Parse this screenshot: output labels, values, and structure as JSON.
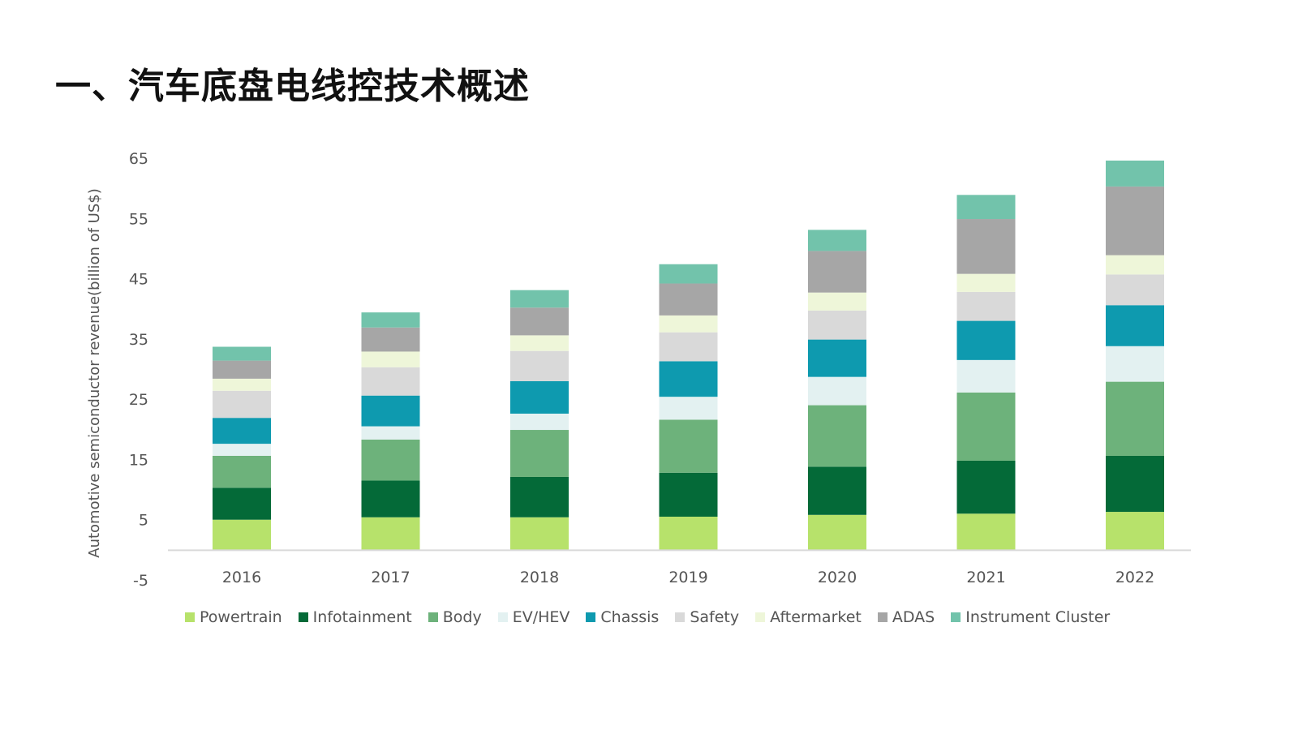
{
  "page": {
    "title": "一、汽车底盘电线控技术概述"
  },
  "chart_data": {
    "type": "bar",
    "stacked": true,
    "categories": [
      "2016",
      "2017",
      "2018",
      "2019",
      "2020",
      "2021",
      "2022"
    ],
    "ylabel": "Automotive semiconductor revenue(billion of US$)",
    "xlabel": "",
    "ylim": [
      -5,
      65
    ],
    "yticks": [
      -5,
      5,
      15,
      25,
      35,
      45,
      55,
      65
    ],
    "grid": false,
    "legend_position": "bottom",
    "series": [
      {
        "name": "Powertrain",
        "color": "#b7e26b",
        "values": [
          5.0,
          5.4,
          5.4,
          5.5,
          5.8,
          6.0,
          6.3
        ]
      },
      {
        "name": "Infotainment",
        "color": "#046a38",
        "values": [
          5.3,
          6.1,
          6.7,
          7.3,
          8.0,
          8.8,
          9.3
        ]
      },
      {
        "name": "Body",
        "color": "#6db27b",
        "values": [
          5.3,
          6.8,
          7.8,
          8.8,
          10.2,
          11.3,
          12.3
        ]
      },
      {
        "name": "EV/HEV",
        "color": "#e3f1f1",
        "values": [
          2.0,
          2.2,
          2.7,
          3.8,
          4.7,
          5.4,
          5.9
        ]
      },
      {
        "name": "Chassis",
        "color": "#0e9aaf",
        "values": [
          4.3,
          5.1,
          5.4,
          5.9,
          6.2,
          6.5,
          6.8
        ]
      },
      {
        "name": "Safety",
        "color": "#d9d9d9",
        "values": [
          4.5,
          4.7,
          5.0,
          4.8,
          4.8,
          4.8,
          5.1
        ]
      },
      {
        "name": "Aftermarket",
        "color": "#eef6d9",
        "values": [
          2.0,
          2.6,
          2.6,
          2.8,
          3.0,
          3.0,
          3.2
        ]
      },
      {
        "name": "ADAS",
        "color": "#a6a6a6",
        "values": [
          3.0,
          4.0,
          4.6,
          5.3,
          6.9,
          9.1,
          11.4
        ]
      },
      {
        "name": "Instrument Cluster",
        "color": "#72c3ab",
        "values": [
          2.3,
          2.5,
          2.9,
          3.2,
          3.5,
          4.0,
          4.3
        ]
      }
    ]
  }
}
